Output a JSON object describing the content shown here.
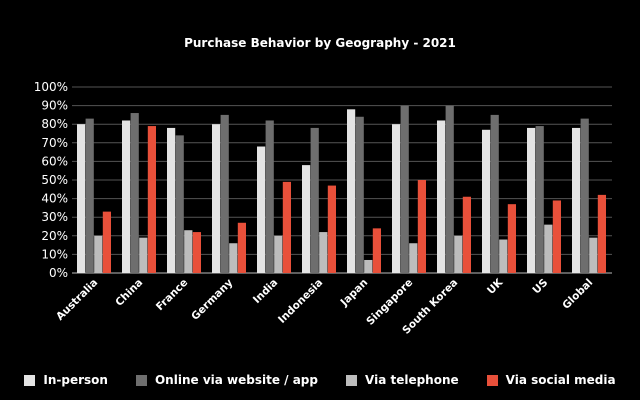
{
  "chart_data": {
    "type": "bar",
    "title": "Purchase Behavior by Geography - 2021",
    "xlabel": "",
    "ylabel": "",
    "ylim": [
      0,
      100
    ],
    "yticks": [
      "0%",
      "10%",
      "20%",
      "30%",
      "40%",
      "50%",
      "60%",
      "70%",
      "80%",
      "90%",
      "100%"
    ],
    "grid": true,
    "legend_position": "bottom",
    "categories": [
      "Australia",
      "China",
      "France",
      "Germany",
      "India",
      "Indonesia",
      "Japan",
      "Singapore",
      "South Korea",
      "UK",
      "US",
      "Global"
    ],
    "series": [
      {
        "name": "In-person",
        "color": "#e4e4e4",
        "values": [
          80,
          82,
          78,
          80,
          68,
          58,
          88,
          80,
          82,
          77,
          78,
          78
        ]
      },
      {
        "name": "Online via website / app",
        "color": "#6e6e6e",
        "values": [
          83,
          86,
          74,
          85,
          82,
          78,
          84,
          90,
          90,
          85,
          79,
          83
        ]
      },
      {
        "name": "Via telephone",
        "color": "#bdbdbd",
        "values": [
          20,
          19,
          23,
          16,
          20,
          22,
          7,
          16,
          20,
          18,
          26,
          19
        ]
      },
      {
        "name": "Via social media",
        "color": "#e8503a",
        "values": [
          33,
          79,
          22,
          27,
          49,
          47,
          24,
          50,
          41,
          37,
          39,
          42
        ]
      }
    ]
  }
}
